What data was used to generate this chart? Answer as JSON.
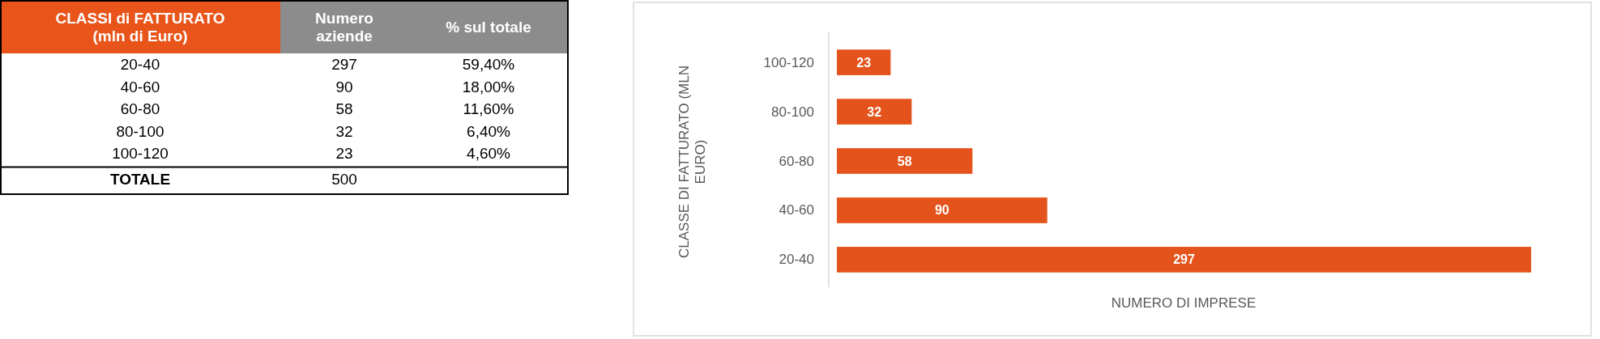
{
  "chart_data": [
    {
      "type": "other",
      "title": "CLASSI di FATTURATO (mln di Euro)",
      "categories": [
        "20-40",
        "40-60",
        "60-80",
        "80-100",
        "100-120",
        "TOTALE"
      ],
      "series": [
        {
          "name": "Numero aziende",
          "values": [
            297,
            90,
            58,
            32,
            23,
            500
          ]
        },
        {
          "name": "% sul totale",
          "values": [
            59.4,
            18,
            11.6,
            6.4,
            4.6,
            null
          ],
          "value_labels": [
            "59,40%",
            "18,00%",
            "11,60%",
            "6,40%",
            "4,60%",
            null
          ]
        }
      ],
      "colors": [
        "#e8541a",
        "#8c8c8c",
        "#8c8c8c"
      ],
      "data_labels": true
    },
    {
      "type": "bar",
      "orientation": "horizontal",
      "categories": [
        "100-120",
        "80-100",
        "60-80",
        "40-60",
        "20-40"
      ],
      "values": [
        23,
        32,
        58,
        90,
        297
      ],
      "color": "#e4531b",
      "data_labels": true,
      "xlabel": "NUMERO DI IMPRESE",
      "ylabel": "CLASSE DI FATTURATO (MLN EURO)"
    }
  ]
}
